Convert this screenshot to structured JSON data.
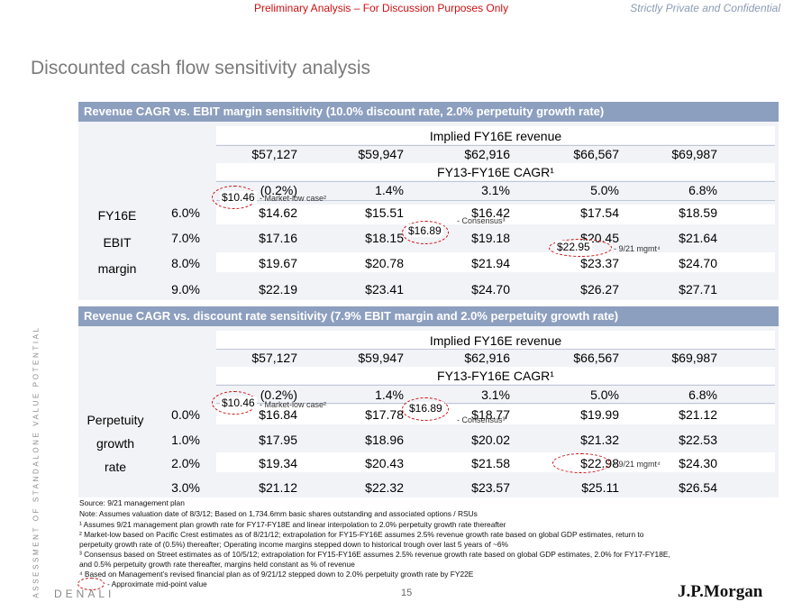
{
  "header": {
    "left": "Preliminary Analysis – For Discussion Purposes Only",
    "right": "Strictly Private and Confidential"
  },
  "title": "Discounted cash flow sensitivity analysis",
  "side_text": "ASSESSMENT OF STANDALONE VALUE POTENTIAL",
  "table1": {
    "band": "Revenue CAGR vs. EBIT margin sensitivity (10.0% discount rate, 2.0% perpetuity growth rate)",
    "implied_label": "Implied FY16E revenue",
    "revenues": [
      "$57,127",
      "$59,947",
      "$62,916",
      "$66,567",
      "$69,987"
    ],
    "cagr_label": "FY13-FY16E CAGR¹",
    "cagrs": [
      "(0.2%)",
      "1.4%",
      "3.1%",
      "5.0%",
      "6.8%"
    ],
    "row_label": [
      "FY16E",
      "EBIT",
      "margin"
    ],
    "row_values": [
      "6.0%",
      "7.0%",
      "8.0%",
      "9.0%"
    ],
    "rows": [
      [
        "$14.62",
        "$15.51",
        "$16.42",
        "$17.54",
        "$18.59"
      ],
      [
        "$17.16",
        "$18.15",
        "$19.18",
        "$20.45",
        "$21.64"
      ],
      [
        "$19.67",
        "$20.78",
        "$21.94",
        "$23.37",
        "$24.70"
      ],
      [
        "$22.19",
        "$23.41",
        "$24.70",
        "$26.27",
        "$27.71"
      ]
    ],
    "mkt_value": "$10.46",
    "mkt_label": "- Market-low case²",
    "cons_value": "$16.89",
    "cons_label": "- Consensus³",
    "mgmt_value": "$22.95",
    "mgmt_label": "- 9/21 mgmt⁴"
  },
  "table2": {
    "band": "Revenue CAGR vs. discount rate sensitivity (7.9% EBIT margin and 2.0% perpetuity growth rate)",
    "implied_label": "Implied FY16E revenue",
    "revenues": [
      "$57,127",
      "$59,947",
      "$62,916",
      "$66,567",
      "$69,987"
    ],
    "cagr_label": "FY13-FY16E CAGR¹",
    "cagrs": [
      "(0.2%)",
      "1.4%",
      "3.1%",
      "5.0%",
      "6.8%"
    ],
    "row_label": [
      "Perpetuity",
      "growth",
      "rate"
    ],
    "row_values": [
      "0.0%",
      "1.0%",
      "2.0%",
      "3.0%"
    ],
    "rows": [
      [
        "$16.84",
        "$17.78",
        "$18.77",
        "$19.99",
        "$21.12"
      ],
      [
        "$17.95",
        "$18.96",
        "$20.02",
        "$21.32",
        "$22.53"
      ],
      [
        "$19.34",
        "$20.43",
        "$21.58",
        "$22.98",
        "$24.30"
      ],
      [
        "$21.12",
        "$22.32",
        "$23.57",
        "$25.11",
        "$26.54"
      ]
    ],
    "mkt_value": "$10.46",
    "mkt_label": "- Market-low case²",
    "cons_value": "$16.89",
    "cons_label": "- Consensus³",
    "mgmt_label": "- 9/21 mgmt⁴"
  },
  "footnotes": [
    "Source: 9/21 management plan",
    "Note: Assumes valuation date of 8/3/12; Based on 1,734.6mm basic shares outstanding and associated options / RSUs",
    "¹ Assumes 9/21 management plan growth rate for FY17-FY18E and linear interpolation to 2.0% perpetuity growth rate thereafter",
    "² Market-low based on Pacific Crest estimates as of 8/21/12; extrapolation for FY15-FY16E assumes 2.5% revenue growth rate based on global GDP estimates, return to",
    "perpetuity growth rate of (0.5%) thereafter; Operating income margins stepped down to historical trough over last 5 years of ~6%",
    "³ Consensus based on Street estimates as of 10/5/12; extrapolation for FY15-FY16E assumes 2.5% revenue growth rate based on global GDP estimates, 2.0% for FY17-FY18E,",
    "and 0.5% perpetuity growth rate thereafter, margins held constant as % of revenue",
    "⁴ Based on Management’s revised financial plan as of 9/21/12 stepped down to 2.0% perpetuity growth rate by FY22E"
  ],
  "legend_label": "- Approximate mid-point value",
  "footer": {
    "brand": "DENALI",
    "page": "15",
    "logo": "J.P.Morgan"
  }
}
